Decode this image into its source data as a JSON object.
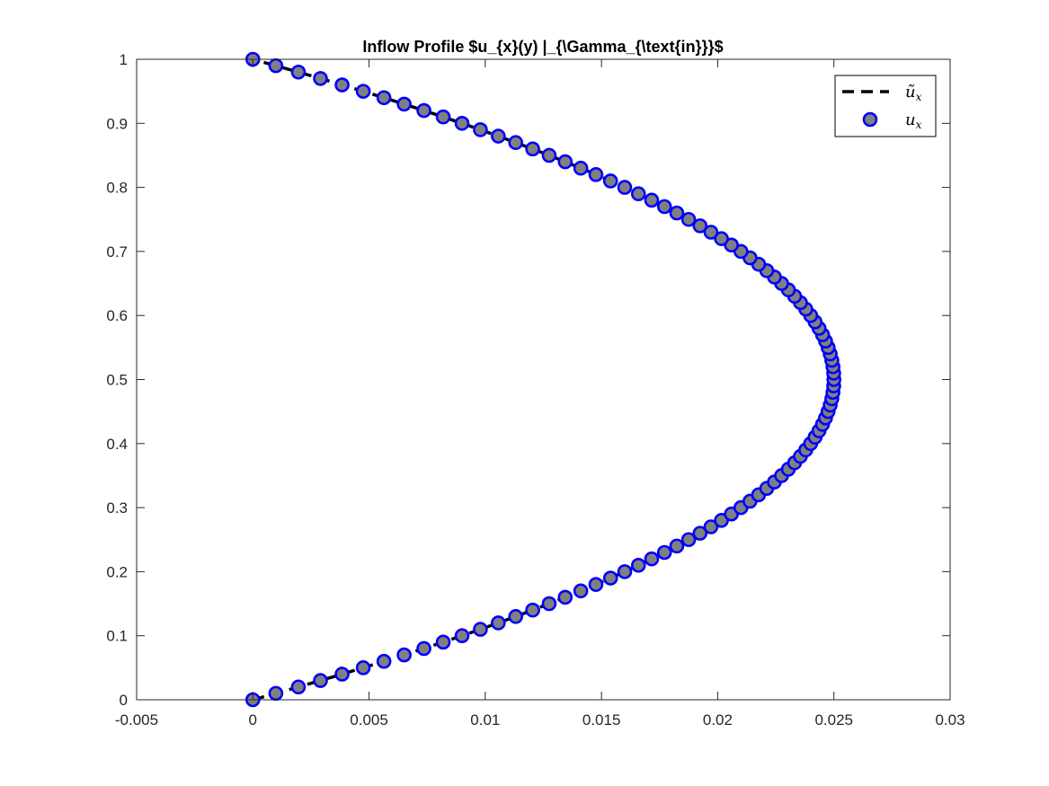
{
  "chart_data": {
    "type": "scatter",
    "title": "Inflow Profile $u_{x}(y) |_{\\Gamma_{\\text{in}}}$",
    "xlabel": "",
    "ylabel": "",
    "xlim": [
      -0.005,
      0.03
    ],
    "ylim": [
      0,
      1
    ],
    "xticks": [
      -0.005,
      0,
      0.005,
      0.01,
      0.015,
      0.02,
      0.025,
      0.03
    ],
    "xtick_labels": [
      "-0.005",
      "0",
      "0.005",
      "0.01",
      "0.015",
      "0.02",
      "0.025",
      "0.03"
    ],
    "yticks": [
      0,
      0.1,
      0.2,
      0.3,
      0.4,
      0.5,
      0.6,
      0.7,
      0.8,
      0.9,
      1
    ],
    "ytick_labels": [
      "0",
      "0.1",
      "0.2",
      "0.3",
      "0.4",
      "0.5",
      "0.6",
      "0.7",
      "0.8",
      "0.9",
      "1"
    ],
    "grid": false,
    "legend_position": "top-right",
    "series": [
      {
        "name": "ũ",
        "name_sub": "x",
        "style": "dashed-line",
        "color": "#000000",
        "formula": "u = 0.1 * y * (1 - y)",
        "y_range": [
          0,
          1
        ],
        "samples": 101
      },
      {
        "name": "u",
        "name_sub": "x",
        "style": "markers",
        "marker": "circle",
        "edge_color": "#0000ff",
        "face_color": "#808080",
        "formula": "u = 0.1 * y * (1 - y)",
        "y_points": [
          0,
          0.01,
          0.02,
          0.03,
          0.04,
          0.05,
          0.06,
          0.07,
          0.08,
          0.09,
          0.1,
          0.11,
          0.12,
          0.13,
          0.14,
          0.15,
          0.16,
          0.17,
          0.18,
          0.19,
          0.2,
          0.21,
          0.22,
          0.23,
          0.24,
          0.25,
          0.26,
          0.27,
          0.28,
          0.29,
          0.3,
          0.31,
          0.32,
          0.33,
          0.34,
          0.35,
          0.36,
          0.37,
          0.38,
          0.39,
          0.4,
          0.41,
          0.42,
          0.43,
          0.44,
          0.45,
          0.46,
          0.47,
          0.48,
          0.49,
          0.5,
          0.51,
          0.52,
          0.53,
          0.54,
          0.55,
          0.56,
          0.57,
          0.58,
          0.59,
          0.6,
          0.61,
          0.62,
          0.63,
          0.64,
          0.65,
          0.66,
          0.67,
          0.68,
          0.69,
          0.7,
          0.71,
          0.72,
          0.73,
          0.74,
          0.75,
          0.76,
          0.77,
          0.78,
          0.79,
          0.8,
          0.81,
          0.82,
          0.83,
          0.84,
          0.85,
          0.86,
          0.87,
          0.88,
          0.89,
          0.9,
          0.91,
          0.92,
          0.93,
          0.94,
          0.95,
          0.96,
          0.97,
          0.98,
          0.99,
          1.0
        ]
      }
    ]
  }
}
